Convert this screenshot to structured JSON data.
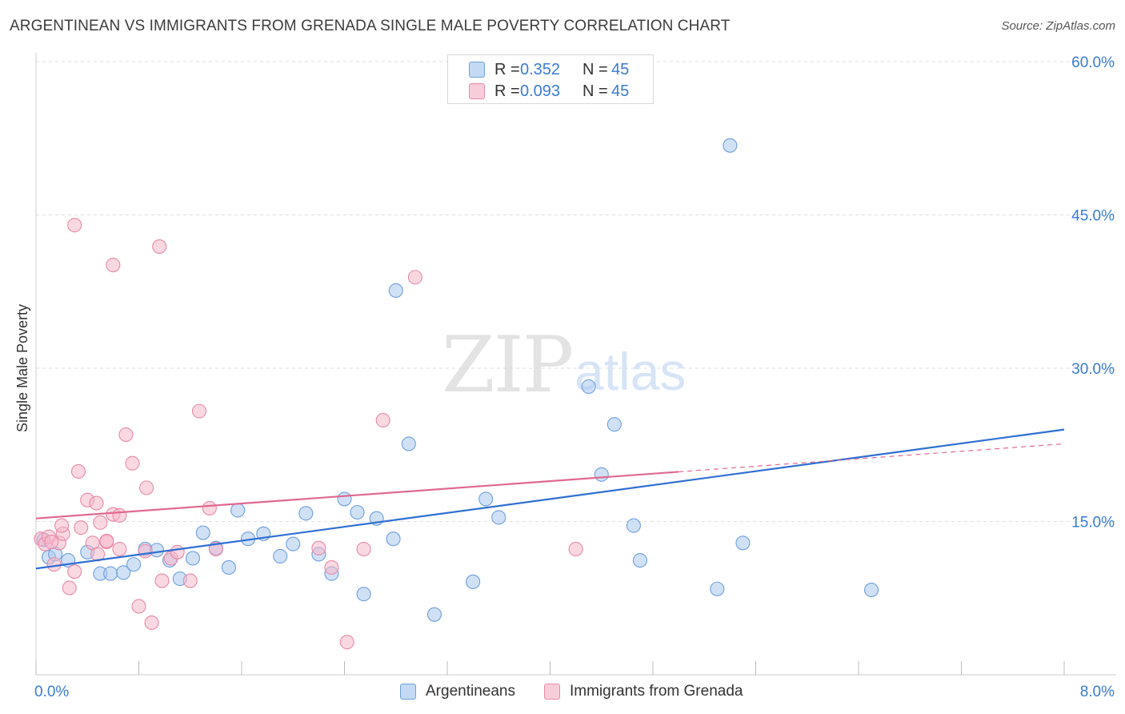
{
  "header": {
    "title": "ARGENTINEAN VS IMMIGRANTS FROM GRENADA SINGLE MALE POVERTY CORRELATION CHART",
    "source": "Source: ZipAtlas.com"
  },
  "watermark": {
    "zip": "ZIP",
    "atlas": "atlas"
  },
  "legend": {
    "rows": [
      {
        "r_label": "R =",
        "r_value": "0.352",
        "n_label": "N =",
        "n_value": "45"
      },
      {
        "r_label": "R =",
        "r_value": "0.093",
        "n_label": "N =",
        "n_value": "45"
      }
    ]
  },
  "bottom_legend": {
    "series1": "Argentineans",
    "series2": "Immigrants from Grenada"
  },
  "colors": {
    "blue_fill": "#a9c8ef",
    "blue_stroke": "#6f9fdc",
    "blue_line": "#2f6fd1",
    "pink_fill": "#f5b8ca",
    "pink_stroke": "#e88aa8",
    "pink_line": "#e0698f",
    "tick_text": "#3a7bd5",
    "grid": "#dddddd"
  },
  "chart_data": {
    "type": "scatter",
    "title": "ARGENTINEAN VS IMMIGRANTS FROM GRENADA SINGLE MALE POVERTY CORRELATION CHART",
    "xlabel": "",
    "ylabel": "Single Male Poverty",
    "xlim": [
      0,
      8.0
    ],
    "ylim": [
      0,
      60.0
    ],
    "x_tick_labels": [
      "0.0%",
      "8.0%"
    ],
    "y_ticks": [
      15,
      30,
      45,
      60
    ],
    "y_tick_labels": [
      "15.0%",
      "30.0%",
      "45.0%",
      "60.0%"
    ],
    "grid": true,
    "series": [
      {
        "name": "Argentineans",
        "r": 0.352,
        "n": 45,
        "trend": {
          "x0": 0.0,
          "y0": 10.4,
          "x1": 8.0,
          "y1": 24.0,
          "dashed_from": null
        },
        "points": [
          [
            0.06,
            13.2
          ],
          [
            0.1,
            11.5
          ],
          [
            0.15,
            11.8
          ],
          [
            0.25,
            11.2
          ],
          [
            0.4,
            12.0
          ],
          [
            0.5,
            9.9
          ],
          [
            0.58,
            9.9
          ],
          [
            0.68,
            10.0
          ],
          [
            0.76,
            10.8
          ],
          [
            0.85,
            12.3
          ],
          [
            0.94,
            12.2
          ],
          [
            1.04,
            11.2
          ],
          [
            1.12,
            9.4
          ],
          [
            1.22,
            11.4
          ],
          [
            1.3,
            13.9
          ],
          [
            1.4,
            12.4
          ],
          [
            1.5,
            10.5
          ],
          [
            1.57,
            16.1
          ],
          [
            1.65,
            13.3
          ],
          [
            1.77,
            13.8
          ],
          [
            1.9,
            11.6
          ],
          [
            2.0,
            12.8
          ],
          [
            2.1,
            15.8
          ],
          [
            2.2,
            11.8
          ],
          [
            2.3,
            9.9
          ],
          [
            2.4,
            17.2
          ],
          [
            2.5,
            15.9
          ],
          [
            2.55,
            7.9
          ],
          [
            2.65,
            15.3
          ],
          [
            2.78,
            13.3
          ],
          [
            2.8,
            37.6
          ],
          [
            2.9,
            22.6
          ],
          [
            3.1,
            5.9
          ],
          [
            3.4,
            9.1
          ],
          [
            3.5,
            17.2
          ],
          [
            3.6,
            15.4
          ],
          [
            4.3,
            28.2
          ],
          [
            4.4,
            19.6
          ],
          [
            4.5,
            24.5
          ],
          [
            4.65,
            14.6
          ],
          [
            4.7,
            11.2
          ],
          [
            5.3,
            8.4
          ],
          [
            5.4,
            51.8
          ],
          [
            5.5,
            12.9
          ],
          [
            6.5,
            8.3
          ]
        ]
      },
      {
        "name": "Immigrants from Grenada",
        "r": 0.093,
        "n": 45,
        "trend": {
          "x0": 0.0,
          "y0": 15.3,
          "x1": 8.0,
          "y1": 22.6,
          "dashed_from": 5.0
        },
        "points": [
          [
            0.04,
            13.3
          ],
          [
            0.07,
            12.8
          ],
          [
            0.1,
            13.5
          ],
          [
            0.14,
            10.8
          ],
          [
            0.18,
            12.9
          ],
          [
            0.21,
            13.8
          ],
          [
            0.26,
            8.5
          ],
          [
            0.3,
            10.1
          ],
          [
            0.35,
            14.4
          ],
          [
            0.4,
            17.1
          ],
          [
            0.44,
            12.9
          ],
          [
            0.48,
            11.8
          ],
          [
            0.5,
            14.9
          ],
          [
            0.55,
            13.0
          ],
          [
            0.6,
            15.7
          ],
          [
            0.65,
            12.3
          ],
          [
            0.7,
            23.5
          ],
          [
            0.75,
            20.7
          ],
          [
            0.8,
            6.7
          ],
          [
            0.86,
            18.3
          ],
          [
            0.9,
            5.1
          ],
          [
            0.98,
            9.2
          ],
          [
            1.05,
            11.4
          ],
          [
            1.1,
            12.0
          ],
          [
            1.2,
            9.2
          ],
          [
            1.27,
            25.8
          ],
          [
            1.35,
            16.3
          ],
          [
            1.4,
            12.3
          ],
          [
            2.2,
            12.4
          ],
          [
            2.3,
            10.5
          ],
          [
            2.42,
            3.2
          ],
          [
            2.55,
            12.3
          ],
          [
            2.7,
            24.9
          ],
          [
            2.95,
            38.9
          ],
          [
            4.2,
            12.3
          ],
          [
            0.3,
            44.0
          ],
          [
            0.6,
            40.1
          ],
          [
            0.96,
            41.9
          ],
          [
            0.33,
            19.9
          ],
          [
            0.47,
            16.8
          ],
          [
            0.65,
            15.6
          ],
          [
            0.85,
            12.1
          ],
          [
            0.2,
            14.6
          ],
          [
            0.12,
            13.0
          ],
          [
            0.55,
            13.1
          ]
        ]
      }
    ]
  }
}
